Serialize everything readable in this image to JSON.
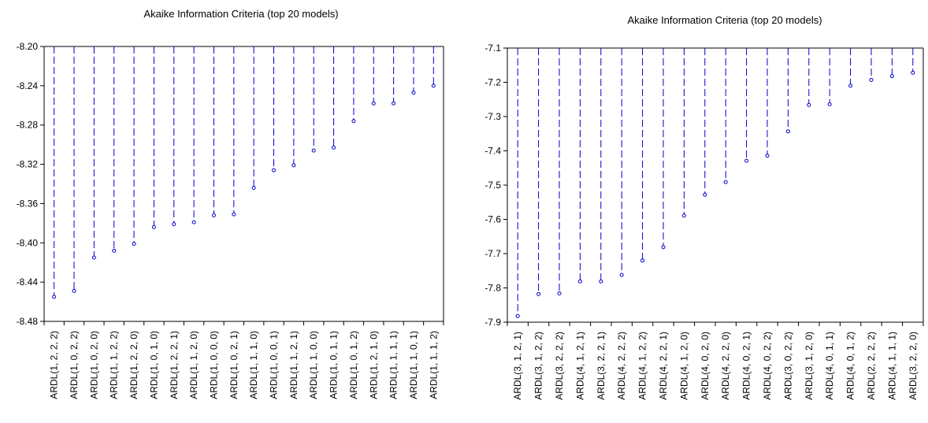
{
  "chart_data": [
    {
      "type": "lollipop",
      "title": "Akaike Information Criteria (top 20 models)",
      "xlabel": "",
      "ylabel": "",
      "ylim": [
        -8.48,
        -8.2
      ],
      "yticks": [
        "-8.20",
        "-8.24",
        "-8.28",
        "-8.32",
        "-8.36",
        "-8.40",
        "-8.44",
        "-8.48"
      ],
      "categories": [
        "ARDL(1, 2, 2, 2)",
        "ARDL(1, 0, 2, 2)",
        "ARDL(1, 0, 2, 0)",
        "ARDL(1, 1, 2, 2)",
        "ARDL(1, 2, 2, 0)",
        "ARDL(1, 0, 1, 0)",
        "ARDL(1, 2, 2, 1)",
        "ARDL(1, 1, 2, 0)",
        "ARDL(1, 0, 0, 0)",
        "ARDL(1, 0, 2, 1)",
        "ARDL(1, 1, 1, 0)",
        "ARDL(1, 0, 0, 1)",
        "ARDL(1, 1, 2, 1)",
        "ARDL(1, 1, 0, 0)",
        "ARDL(1, 0, 1, 1)",
        "ARDL(1, 0, 1, 2)",
        "ARDL(1, 2, 1, 0)",
        "ARDL(1, 1, 1, 1)",
        "ARDL(1, 1, 0, 1)",
        "ARDL(1, 1, 1, 2)"
      ],
      "values": [
        -8.455,
        -8.449,
        -8.415,
        -8.408,
        -8.401,
        -8.384,
        -8.381,
        -8.379,
        -8.372,
        -8.371,
        -8.344,
        -8.326,
        -8.321,
        -8.306,
        -8.303,
        -8.276,
        -8.258,
        -8.258,
        -8.247,
        -8.24
      ],
      "color": "#0000cc",
      "grid": false
    },
    {
      "type": "lollipop",
      "title": "Akaike Information Criteria (top 20 models)",
      "xlabel": "",
      "ylabel": "",
      "ylim": [
        -7.9,
        -7.1
      ],
      "yticks": [
        "-7.1",
        "-7.2",
        "-7.3",
        "-7.4",
        "-7.5",
        "-7.6",
        "-7.7",
        "-7.8",
        "-7.9"
      ],
      "categories": [
        "ARDL(3, 1, 2, 1)",
        "ARDL(3, 1, 2, 2)",
        "ARDL(3, 2, 2, 2)",
        "ARDL(4, 1, 2, 1)",
        "ARDL(3, 2, 2, 1)",
        "ARDL(4, 2, 2, 2)",
        "ARDL(4, 1, 2, 2)",
        "ARDL(4, 2, 2, 1)",
        "ARDL(4, 1, 2, 0)",
        "ARDL(4, 0, 2, 0)",
        "ARDL(4, 2, 2, 0)",
        "ARDL(4, 0, 2, 1)",
        "ARDL(4, 0, 2, 2)",
        "ARDL(3, 0, 2, 2)",
        "ARDL(3, 1, 2, 0)",
        "ARDL(4, 0, 1, 1)",
        "ARDL(4, 0, 1, 2)",
        "ARDL(2, 2, 2, 2)",
        "ARDL(4, 1, 1, 1)",
        "ARDL(3, 2, 2, 0)"
      ],
      "values": [
        -7.882,
        -7.818,
        -7.816,
        -7.781,
        -7.781,
        -7.762,
        -7.72,
        -7.681,
        -7.589,
        -7.528,
        -7.491,
        -7.429,
        -7.414,
        -7.343,
        -7.266,
        -7.264,
        -7.21,
        -7.193,
        -7.182,
        -7.172
      ],
      "color": "#0000cc",
      "grid": false
    }
  ]
}
